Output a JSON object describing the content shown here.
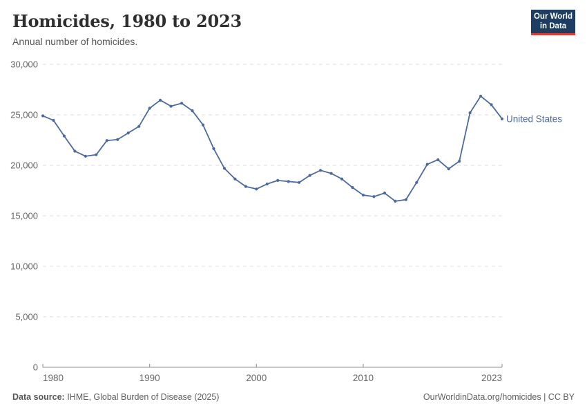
{
  "header": {
    "title": "Homicides, 1980 to 2023",
    "subtitle": "Annual number of homicides.",
    "logo": {
      "line1": "Our World",
      "line2": "in Data",
      "bg_color": "#1d3d63",
      "accent_color": "#dc3c32"
    }
  },
  "chart_data": {
    "type": "line",
    "title": "Homicides, 1980 to 2023",
    "xlabel": "",
    "ylabel": "",
    "xlim": [
      1980,
      2023
    ],
    "ylim": [
      0,
      30000
    ],
    "grid": "horizontal-dashed",
    "legend_position": "end-of-line-label",
    "x_ticks": [
      1980,
      1990,
      2000,
      2010,
      2023
    ],
    "x_tick_labels": [
      "1980",
      "1990",
      "2000",
      "2010",
      "2023"
    ],
    "y_ticks": [
      0,
      5000,
      10000,
      15000,
      20000,
      25000,
      30000
    ],
    "y_tick_labels": [
      "0",
      "5,000",
      "10,000",
      "15,000",
      "20,000",
      "25,000",
      "30,000"
    ],
    "x": [
      1980,
      1981,
      1982,
      1983,
      1984,
      1985,
      1986,
      1987,
      1988,
      1989,
      1990,
      1991,
      1992,
      1993,
      1994,
      1995,
      1996,
      1997,
      1998,
      1999,
      2000,
      2001,
      2002,
      2003,
      2004,
      2005,
      2006,
      2007,
      2008,
      2009,
      2010,
      2011,
      2012,
      2013,
      2014,
      2015,
      2016,
      2017,
      2018,
      2019,
      2020,
      2021,
      2022,
      2023
    ],
    "series": [
      {
        "name": "United States",
        "color": "#4c6a9c",
        "values": [
          24900,
          24450,
          22900,
          21400,
          20900,
          21050,
          22450,
          22550,
          23200,
          23850,
          25650,
          26450,
          25850,
          26150,
          25400,
          24000,
          21650,
          19700,
          18650,
          17900,
          17650,
          18150,
          18500,
          18400,
          18300,
          19000,
          19500,
          19200,
          18650,
          17800,
          17050,
          16900,
          17250,
          16450,
          16600,
          18300,
          20100,
          20550,
          19650,
          20400,
          25200,
          26850,
          26000,
          24600
        ]
      }
    ],
    "axis_color": "#8c8c8c",
    "grid_color": "#dcdcdc",
    "tick_label_color": "#666666"
  },
  "footer": {
    "source_label": "Data source:",
    "source_text": " IHME, Global Burden of Disease (2025)",
    "attribution": "OurWorldinData.org/homicides | CC BY"
  }
}
